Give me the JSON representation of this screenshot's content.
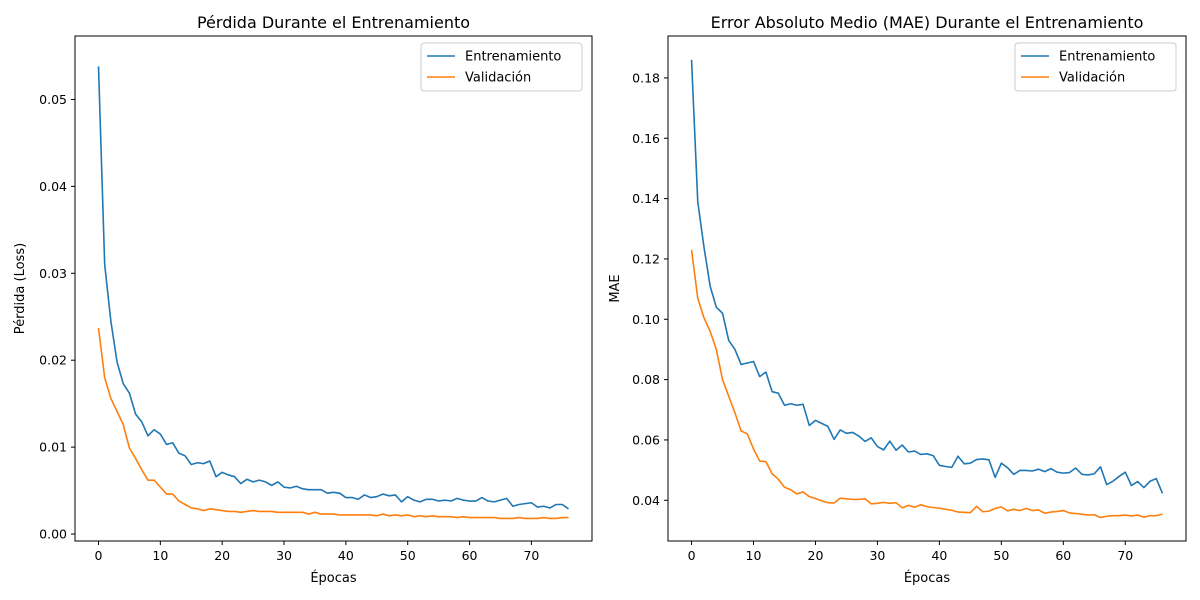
{
  "colors": {
    "train": "#1f77b4",
    "val": "#ff7f0e"
  },
  "chart_data": [
    {
      "type": "line",
      "title": "Pérdida Durante el Entrenamiento",
      "xlabel": "Épocas",
      "ylabel": "Pérdida (Loss)",
      "xlim": [
        -3.8,
        79.8
      ],
      "ylim": [
        -0.0008,
        0.0573
      ],
      "xticks": [
        0,
        10,
        20,
        30,
        40,
        50,
        60,
        70
      ],
      "xtick_labels": [
        "0",
        "10",
        "20",
        "30",
        "40",
        "50",
        "60",
        "70"
      ],
      "yticks": [
        0.0,
        0.01,
        0.02,
        0.03,
        0.04,
        0.05
      ],
      "ytick_labels": [
        "0.00",
        "0.01",
        "0.02",
        "0.03",
        "0.04",
        "0.05"
      ],
      "grid": false,
      "legend": "upper right",
      "series": [
        {
          "name": "Entrenamiento",
          "color": "#1f77b4",
          "values": [
            0.0538,
            0.031,
            0.0245,
            0.0198,
            0.0173,
            0.0162,
            0.0138,
            0.0129,
            0.0113,
            0.012,
            0.0115,
            0.0103,
            0.0105,
            0.0093,
            0.009,
            0.008,
            0.0082,
            0.0081,
            0.0084,
            0.0066,
            0.0071,
            0.0068,
            0.0066,
            0.0058,
            0.0063,
            0.006,
            0.0062,
            0.006,
            0.0056,
            0.006,
            0.0054,
            0.0053,
            0.0055,
            0.0052,
            0.0051,
            0.0051,
            0.0051,
            0.0047,
            0.0048,
            0.0047,
            0.0042,
            0.0042,
            0.004,
            0.0045,
            0.0042,
            0.0043,
            0.0046,
            0.0044,
            0.0045,
            0.0037,
            0.0043,
            0.0039,
            0.0037,
            0.004,
            0.004,
            0.0038,
            0.0039,
            0.0038,
            0.0041,
            0.0039,
            0.0038,
            0.0038,
            0.0042,
            0.0038,
            0.0037,
            0.0039,
            0.0041,
            0.0032,
            0.0034,
            0.0035,
            0.0036,
            0.0031,
            0.0032,
            0.003,
            0.0034,
            0.0034,
            0.0029
          ]
        },
        {
          "name": "Validación",
          "color": "#ff7f0e",
          "values": [
            0.0237,
            0.018,
            0.0156,
            0.0141,
            0.0126,
            0.0099,
            0.0087,
            0.0074,
            0.0062,
            0.0062,
            0.0054,
            0.0046,
            0.0046,
            0.0038,
            0.0034,
            0.003,
            0.0029,
            0.0027,
            0.0029,
            0.0028,
            0.0027,
            0.0026,
            0.0026,
            0.0025,
            0.0026,
            0.0027,
            0.0026,
            0.0026,
            0.0026,
            0.0025,
            0.0025,
            0.0025,
            0.0025,
            0.0025,
            0.0023,
            0.0025,
            0.0023,
            0.0023,
            0.0023,
            0.0022,
            0.0022,
            0.0022,
            0.0022,
            0.0022,
            0.0022,
            0.0021,
            0.0023,
            0.0021,
            0.0022,
            0.0021,
            0.0022,
            0.002,
            0.0021,
            0.002,
            0.0021,
            0.002,
            0.002,
            0.002,
            0.0019,
            0.002,
            0.0019,
            0.0019,
            0.0019,
            0.0019,
            0.0019,
            0.0018,
            0.0018,
            0.0018,
            0.0019,
            0.0018,
            0.0018,
            0.0018,
            0.0019,
            0.0018,
            0.0018,
            0.0019,
            0.0019
          ]
        }
      ]
    },
    {
      "type": "line",
      "title": "Error Absoluto Medio (MAE) Durante el Entrenamiento",
      "xlabel": "Épocas",
      "ylabel": "MAE",
      "xlim": [
        -3.8,
        79.8
      ],
      "ylim": [
        0.0265,
        0.1939
      ],
      "xticks": [
        0,
        10,
        20,
        30,
        40,
        50,
        60,
        70
      ],
      "xtick_labels": [
        "0",
        "10",
        "20",
        "30",
        "40",
        "50",
        "60",
        "70"
      ],
      "yticks": [
        0.04,
        0.06,
        0.08,
        0.1,
        0.12,
        0.14,
        0.16,
        0.18
      ],
      "ytick_labels": [
        "0.04",
        "0.06",
        "0.08",
        "0.10",
        "0.12",
        "0.14",
        "0.16",
        "0.18"
      ],
      "grid": false,
      "legend": "upper right",
      "series": [
        {
          "name": "Entrenamiento",
          "color": "#1f77b4",
          "values": [
            0.186,
            0.139,
            0.124,
            0.111,
            0.104,
            0.102,
            0.093,
            0.09,
            0.085,
            0.0855,
            0.086,
            0.081,
            0.0825,
            0.076,
            0.0755,
            0.0715,
            0.072,
            0.0715,
            0.0718,
            0.0648,
            0.0665,
            0.0655,
            0.0645,
            0.0602,
            0.0633,
            0.0622,
            0.0625,
            0.0613,
            0.0595,
            0.0607,
            0.0578,
            0.0567,
            0.0596,
            0.0566,
            0.0583,
            0.056,
            0.0563,
            0.0552,
            0.0554,
            0.0548,
            0.0516,
            0.0512,
            0.0509,
            0.0546,
            0.0521,
            0.0523,
            0.0535,
            0.0537,
            0.0534,
            0.0476,
            0.0523,
            0.0508,
            0.0486,
            0.0499,
            0.0499,
            0.0497,
            0.0503,
            0.0495,
            0.0505,
            0.0493,
            0.049,
            0.0492,
            0.0507,
            0.0486,
            0.0484,
            0.0488,
            0.0511,
            0.0452,
            0.0463,
            0.0479,
            0.0493,
            0.0449,
            0.0462,
            0.0442,
            0.0463,
            0.0472,
            0.0423
          ]
        },
        {
          "name": "Validación",
          "color": "#ff7f0e",
          "values": [
            0.123,
            0.107,
            0.1005,
            0.096,
            0.09,
            0.08,
            0.0745,
            0.069,
            0.063,
            0.062,
            0.057,
            0.053,
            0.0528,
            0.0488,
            0.047,
            0.0443,
            0.0435,
            0.0421,
            0.0428,
            0.0412,
            0.0406,
            0.0398,
            0.0392,
            0.0391,
            0.0407,
            0.0405,
            0.0403,
            0.0403,
            0.0405,
            0.0388,
            0.039,
            0.0393,
            0.039,
            0.0392,
            0.0375,
            0.0383,
            0.0377,
            0.0385,
            0.0379,
            0.0376,
            0.0374,
            0.037,
            0.0367,
            0.0361,
            0.036,
            0.0359,
            0.038,
            0.0362,
            0.0364,
            0.0373,
            0.0378,
            0.0365,
            0.037,
            0.0366,
            0.0373,
            0.0366,
            0.0368,
            0.0357,
            0.0361,
            0.0363,
            0.0366,
            0.0358,
            0.0356,
            0.0354,
            0.0351,
            0.0352,
            0.0343,
            0.0347,
            0.0349,
            0.0349,
            0.0351,
            0.0348,
            0.0351,
            0.0344,
            0.0349,
            0.0349,
            0.0354
          ]
        }
      ]
    }
  ]
}
